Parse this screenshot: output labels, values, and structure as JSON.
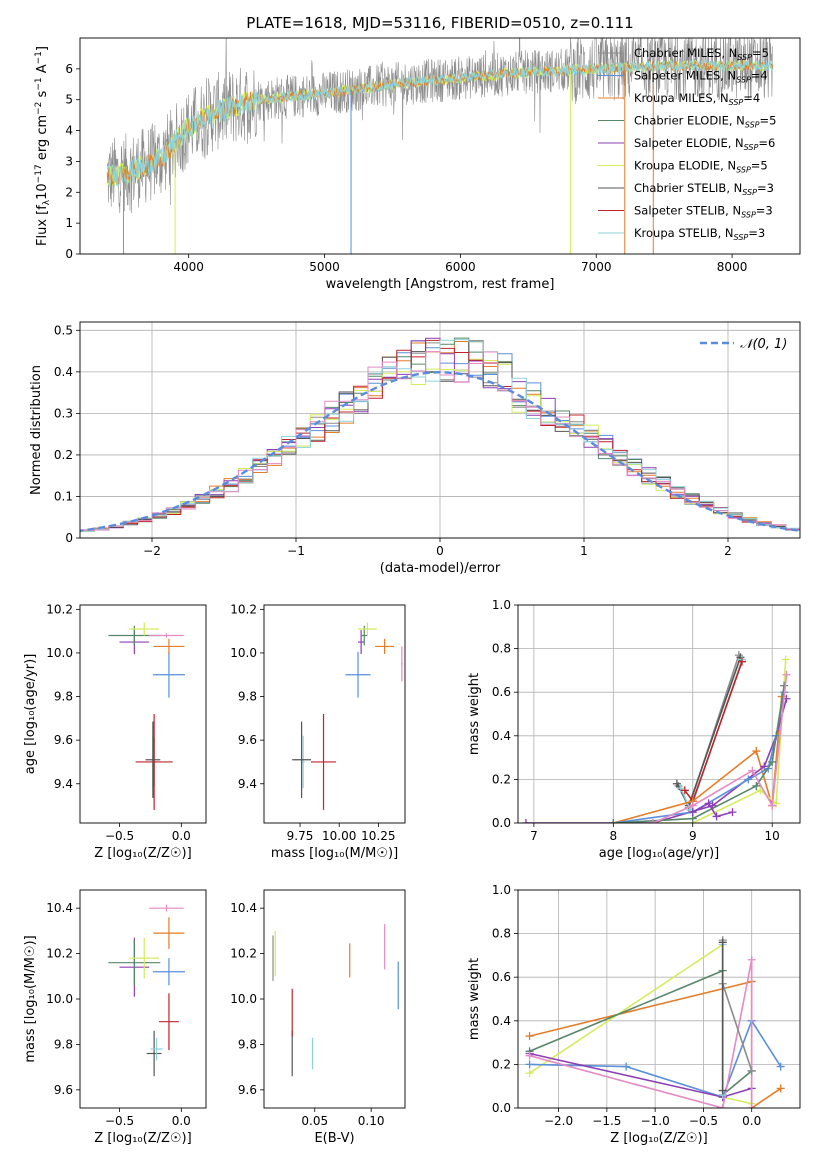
{
  "title": "PLATE=1618, MJD=53116, FIBERID=0510, z=0.111",
  "colors": {
    "chabrier_miles": "#8c8c8c",
    "salpeter_miles": "#5a8fdc",
    "kroupa_miles": "#e37d2a",
    "chabrier_elodie": "#56876a",
    "salpeter_elodie": "#8e3fb6",
    "kroupa_elodie": "#d4ec5c",
    "chabrier_stelib": "#555555",
    "salpeter_stelib": "#c0242b",
    "kroupa_stelib": "#8fd3da",
    "pink": "#e48ac4",
    "gaussian": "#5b8cdc",
    "grid": "#b0b0b0"
  },
  "legend": [
    {
      "label": "Chabrier MILES, N",
      "sub": "SSP",
      "n": "=5"
    },
    {
      "label": "Salpeter MILES, N",
      "sub": "SSP",
      "n": "=4"
    },
    {
      "label": "Kroupa MILES, N",
      "sub": "SSP",
      "n": "=4"
    },
    {
      "label": "Chabrier ELODIE, N",
      "sub": "SSP",
      "n": "=5"
    },
    {
      "label": "Salpeter ELODIE, N",
      "sub": "SSP",
      "n": "=6"
    },
    {
      "label": "Kroupa ELODIE, N",
      "sub": "SSP",
      "n": "=5"
    },
    {
      "label": "Chabrier STELIB, N",
      "sub": "SSP",
      "n": "=3"
    },
    {
      "label": "Salpeter STELIB, N",
      "sub": "SSP",
      "n": "=3"
    },
    {
      "label": "Kroupa STELIB, N",
      "sub": "SSP",
      "n": "=3"
    }
  ],
  "chart_data": [
    {
      "type": "line",
      "panel": "spectrum",
      "xlabel": "wavelength [Angstrom, rest frame]",
      "ylabel_parts": [
        "Flux [f",
        "λ",
        "10",
        "−17",
        " erg cm",
        "−2",
        " s",
        "−1",
        " A",
        "−1",
        "]"
      ],
      "xlim": [
        3200,
        8500
      ],
      "ylim": [
        0,
        7
      ],
      "xticks": [
        4000,
        5000,
        6000,
        7000,
        8000
      ],
      "yticks": [
        0,
        1,
        2,
        3,
        4,
        5,
        6
      ],
      "continuum": {
        "x": [
          3400,
          3600,
          3800,
          4000,
          4200,
          4500,
          5000,
          5500,
          6000,
          6500,
          7000,
          7500,
          8000,
          8300
        ],
        "y": [
          2.5,
          2.7,
          3.1,
          4.1,
          4.6,
          5.0,
          5.2,
          5.5,
          5.7,
          5.9,
          6.0,
          6.1,
          6.1,
          6.1
        ]
      }
    },
    {
      "type": "histogram",
      "panel": "residuals",
      "xlabel": "(data-model)/error",
      "ylabel": "Normed distribution",
      "xlim": [
        -2.5,
        2.5
      ],
      "ylim": [
        0,
        0.52
      ],
      "xticks": [
        -2,
        -1,
        0,
        1,
        2
      ],
      "yticks": [
        0,
        0.1,
        0.2,
        0.3,
        0.4,
        0.5
      ],
      "gaussian_label": "𝒩(0, 1)",
      "bin_width": 0.1
    },
    {
      "type": "scatter",
      "panel": "age_vs_Z",
      "xlabel": "Z [log₁₀(Z/Z☉)]",
      "ylabel": "age  [log₁₀(age/yr)]",
      "xlim": [
        -0.82,
        0.2
      ],
      "ylim": [
        9.22,
        10.22
      ],
      "xticks": [
        -0.5,
        0.0
      ],
      "yticks": [
        9.4,
        9.6,
        9.8,
        10.0,
        10.2
      ],
      "points": [
        {
          "c": "kroupa_stelib",
          "x": -0.23,
          "y": 9.5,
          "xe": 0.02,
          "ye": 0.24
        },
        {
          "c": "chabrier_elodie",
          "x": -0.22,
          "y": 9.5,
          "xe": 0.02,
          "ye": 0.22
        },
        {
          "c": "salpeter_stelib",
          "x": -0.22,
          "y": 9.5,
          "xe": 0.3,
          "ye": 0.44
        },
        {
          "c": "chabrier_stelib",
          "x": -0.23,
          "y": 9.51,
          "xe": 0.12,
          "ye": 0.35
        },
        {
          "c": "salpeter_miles",
          "x": -0.1,
          "y": 9.9,
          "xe": 0.26,
          "ye": 0.21
        },
        {
          "c": "kroupa_miles",
          "x": -0.1,
          "y": 10.03,
          "xe": 0.25,
          "ye": 0.07
        },
        {
          "c": "salpeter_elodie",
          "x": -0.38,
          "y": 10.05,
          "xe": 0.24,
          "ye": 0.11
        },
        {
          "c": "chabrier_elodie",
          "x": -0.38,
          "y": 10.08,
          "xe": 0.42,
          "ye": 0.09
        },
        {
          "c": "kroupa_elodie",
          "x": -0.3,
          "y": 10.11,
          "xe": 0.24,
          "ye": 0.06
        },
        {
          "c": "pink",
          "x": -0.12,
          "y": 10.08,
          "xe": 0.28,
          "ye": 0.02
        }
      ]
    },
    {
      "type": "scatter",
      "panel": "age_vs_mass",
      "xlabel": "mass [log₁₀(M/M☉)]",
      "ylabel": "",
      "xlim": [
        9.52,
        10.42
      ],
      "ylim": [
        9.22,
        10.22
      ],
      "xticks": [
        9.75,
        10.0,
        10.25
      ],
      "xtick_labels": [
        "9.75",
        "10.00",
        "10.25"
      ],
      "yticks": [
        9.4,
        9.6,
        9.8,
        10.0,
        10.2
      ],
      "points": [
        {
          "c": "kroupa_stelib",
          "x": 9.77,
          "y": 9.5,
          "xe": 0.02,
          "ye": 0.24
        },
        {
          "c": "chabrier_stelib",
          "x": 9.76,
          "y": 9.51,
          "xe": 0.12,
          "ye": 0.35
        },
        {
          "c": "salpeter_stelib",
          "x": 9.9,
          "y": 9.5,
          "xe": 0.16,
          "ye": 0.44
        },
        {
          "c": "salpeter_miles",
          "x": 10.12,
          "y": 9.9,
          "xe": 0.16,
          "ye": 0.21
        },
        {
          "c": "kroupa_miles",
          "x": 10.29,
          "y": 10.03,
          "xe": 0.12,
          "ye": 0.07
        },
        {
          "c": "salpeter_elodie",
          "x": 10.14,
          "y": 10.05,
          "xe": 0.04,
          "ye": 0.11
        },
        {
          "c": "chabrier_elodie",
          "x": 10.16,
          "y": 10.08,
          "xe": 0.04,
          "ye": 0.09
        },
        {
          "c": "kroupa_elodie",
          "x": 10.18,
          "y": 10.11,
          "xe": 0.12,
          "ye": 0.06
        },
        {
          "c": "pink",
          "x": 10.4,
          "y": 9.95,
          "xe": 0.01,
          "ye": 0.16
        }
      ]
    },
    {
      "type": "line",
      "panel": "massweight_vs_age",
      "xlabel": "age  [log₁₀(age/yr)]",
      "ylabel": "mass weight",
      "xlim": [
        6.8,
        10.35
      ],
      "ylim": [
        0,
        1
      ],
      "xticks": [
        7,
        8,
        9,
        10
      ],
      "yticks": [
        0,
        0.2,
        0.4,
        0.6,
        0.8,
        1.0
      ],
      "series": [
        {
          "c": "chabrier_miles",
          "x": [
            8.82,
            8.95,
            9.58
          ],
          "y": [
            0.17,
            0.07,
            0.77
          ]
        },
        {
          "c": "chabrier_stelib",
          "x": [
            8.8,
            8.95,
            9.6
          ],
          "y": [
            0.18,
            0.08,
            0.76
          ]
        },
        {
          "c": "kroupa_stelib",
          "x": [
            8.85,
            8.97,
            9.62
          ],
          "y": [
            0.16,
            0.06,
            0.75
          ]
        },
        {
          "c": "salpeter_stelib",
          "x": [
            8.9,
            9.0,
            9.62
          ],
          "y": [
            0.15,
            0.1,
            0.74
          ]
        },
        {
          "c": "kroupa_miles",
          "x": [
            8.0,
            9.0,
            9.8,
            10.0,
            10.12
          ],
          "y": [
            0.0,
            0.1,
            0.33,
            0.08,
            0.58
          ]
        },
        {
          "c": "kroupa_elodie",
          "x": [
            8.3,
            9.0,
            9.85,
            10.05,
            10.17
          ],
          "y": [
            0.0,
            0.0,
            0.15,
            0.09,
            0.75
          ]
        },
        {
          "c": "salpeter_elodie",
          "x": [
            6.9,
            8.5,
            9.25,
            9.9,
            10.05,
            10.18
          ],
          "y": [
            0.0,
            0.0,
            0.08,
            0.26,
            0.4,
            0.57
          ]
        },
        {
          "c": "salpeter_miles",
          "x": [
            8.0,
            9.0,
            9.7,
            9.95,
            10.05,
            10.15
          ],
          "y": [
            0.0,
            0.05,
            0.2,
            0.25,
            0.4,
            0.6
          ]
        },
        {
          "c": "chabrier_elodie",
          "x": [
            8.0,
            9.0,
            9.8,
            10.0,
            10.15
          ],
          "y": [
            0.0,
            0.02,
            0.17,
            0.28,
            0.63
          ]
        },
        {
          "c": "pink",
          "x": [
            8.5,
            9.0,
            9.75,
            10.0,
            10.18
          ],
          "y": [
            0.0,
            0.08,
            0.24,
            0.08,
            0.68
          ]
        },
        {
          "c": "salpeter_elodie",
          "x": [
            9.0,
            9.2,
            9.3,
            9.5
          ],
          "y": [
            0.05,
            0.09,
            0.03,
            0.05
          ]
        }
      ]
    },
    {
      "type": "scatter",
      "panel": "mass_vs_Z",
      "xlabel": "Z [log₁₀(Z/Z☉)]",
      "ylabel": "mass [log₁₀(M/M☉)]",
      "xlim": [
        -0.82,
        0.2
      ],
      "ylim": [
        9.52,
        10.48
      ],
      "xticks": [
        -0.5,
        0.0
      ],
      "yticks": [
        9.6,
        9.8,
        10.0,
        10.2,
        10.4
      ],
      "points": [
        {
          "c": "chabrier_stelib",
          "x": -0.22,
          "y": 9.76,
          "xe": 0.12,
          "ye": 0.2
        },
        {
          "c": "kroupa_stelib",
          "x": -0.2,
          "y": 9.78,
          "xe": 0.1,
          "ye": 0.1
        },
        {
          "c": "salpeter_stelib",
          "x": -0.1,
          "y": 9.9,
          "xe": 0.16,
          "ye": 0.25
        },
        {
          "c": "salpeter_miles",
          "x": -0.1,
          "y": 10.12,
          "xe": 0.26,
          "ye": 0.12
        },
        {
          "c": "kroupa_miles",
          "x": -0.1,
          "y": 10.29,
          "xe": 0.25,
          "ye": 0.14
        },
        {
          "c": "salpeter_elodie",
          "x": -0.38,
          "y": 10.14,
          "xe": 0.24,
          "ye": 0.26
        },
        {
          "c": "chabrier_elodie",
          "x": -0.38,
          "y": 10.16,
          "xe": 0.42,
          "ye": 0.2
        },
        {
          "c": "kroupa_elodie",
          "x": -0.3,
          "y": 10.18,
          "xe": 0.24,
          "ye": 0.18
        },
        {
          "c": "pink",
          "x": -0.12,
          "y": 10.4,
          "xe": 0.28,
          "ye": 0.03
        }
      ]
    },
    {
      "type": "scatter",
      "panel": "mass_vs_EBV",
      "xlabel": "E(B-V)",
      "ylabel": "",
      "xlim": [
        0.005,
        0.13
      ],
      "ylim": [
        9.52,
        10.48
      ],
      "xticks": [
        0.05,
        0.1
      ],
      "xtick_labels": [
        "0.05",
        "0.10"
      ],
      "yticks": [
        9.6,
        9.8,
        10.0,
        10.2,
        10.4
      ],
      "points": [
        {
          "c": "chabrier_stelib",
          "x": 0.03,
          "y": 9.76,
          "ye": 0.2
        },
        {
          "c": "salpeter_stelib",
          "x": 0.03,
          "y": 9.94,
          "ye": 0.21
        },
        {
          "c": "kroupa_stelib",
          "x": 0.048,
          "y": 9.76,
          "ye": 0.14
        },
        {
          "c": "chabrier_miles",
          "x": 0.013,
          "y": 10.18,
          "ye": 0.2
        },
        {
          "c": "kroupa_elodie",
          "x": 0.015,
          "y": 10.2,
          "ye": 0.2
        },
        {
          "c": "kroupa_miles",
          "x": 0.081,
          "y": 10.17,
          "ye": 0.15
        },
        {
          "c": "pink",
          "x": 0.112,
          "y": 10.23,
          "ye": 0.2
        },
        {
          "c": "salpeter_miles",
          "x": 0.124,
          "y": 10.06,
          "ye": 0.21
        }
      ]
    },
    {
      "type": "line",
      "panel": "massweight_vs_Z",
      "xlabel": "Z [log₁₀(Z/Z☉)]",
      "ylabel": "mass weight",
      "xlim": [
        -2.42,
        0.5
      ],
      "ylim": [
        0,
        1
      ],
      "xticks": [
        -2.0,
        -1.5,
        -1.0,
        -0.5,
        0.0
      ],
      "xtick_labels": [
        "−2.0",
        "−1.5",
        "−1.0",
        "−0.5",
        "0.0"
      ],
      "yticks": [
        0,
        0.2,
        0.4,
        0.6,
        0.8,
        1.0
      ],
      "series": [
        {
          "c": "kroupa_miles",
          "x": [
            -2.3,
            0.0,
            0.0,
            0.3
          ],
          "y": [
            0.33,
            0.58,
            0.0,
            0.09
          ]
        },
        {
          "c": "kroupa_elodie",
          "x": [
            -2.3,
            -0.3,
            -0.3,
            0.0
          ],
          "y": [
            0.16,
            0.75,
            0.05,
            0.02
          ]
        },
        {
          "c": "chabrier_elodie",
          "x": [
            -2.3,
            -0.3,
            -0.3,
            0.0
          ],
          "y": [
            0.26,
            0.63,
            0.06,
            0.17
          ]
        },
        {
          "c": "salpeter_miles",
          "x": [
            -2.3,
            -1.3,
            -0.3,
            0.0,
            0.3
          ],
          "y": [
            0.2,
            0.19,
            0.05,
            0.4,
            0.19
          ]
        },
        {
          "c": "salpeter_elodie",
          "x": [
            -2.3,
            -0.3,
            0.0
          ],
          "y": [
            0.25,
            0.05,
            0.09
          ]
        },
        {
          "c": "pink",
          "x": [
            -2.3,
            -0.3,
            0.0,
            0.0
          ],
          "y": [
            0.24,
            0.0,
            0.68,
            0.0
          ]
        },
        {
          "c": "chabrier_miles",
          "x": [
            -0.3,
            -0.3,
            0.0
          ],
          "y": [
            0.77,
            0.57,
            0.17
          ]
        },
        {
          "c": "kroupa_stelib",
          "x": [
            -0.3,
            -0.3
          ],
          "y": [
            0.75,
            0.06
          ]
        },
        {
          "c": "chabrier_stelib",
          "x": [
            -0.3,
            -0.3
          ],
          "y": [
            0.76,
            0.08
          ]
        }
      ]
    }
  ]
}
